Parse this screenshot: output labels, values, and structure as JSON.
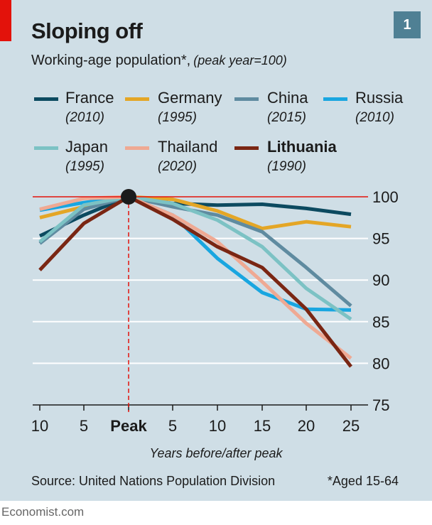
{
  "header": {
    "chart_number": "1"
  },
  "footer": {
    "source": "Source: United Nations Population Division",
    "footnote": "*Aged 15-64",
    "brand": "Economist.com"
  },
  "legend": [
    {
      "name": "France",
      "year": "(2010)",
      "color": "#0c4a60"
    },
    {
      "name": "Germany",
      "year": "(1995)",
      "color": "#e4a626"
    },
    {
      "name": "China",
      "year": "(2015)",
      "color": "#5f8ba0"
    },
    {
      "name": "Russia",
      "year": "(2010)",
      "color": "#19a6e0"
    },
    {
      "name": "Japan",
      "year": "(1995)",
      "color": "#7cc2c4"
    },
    {
      "name": "Thailand",
      "year": "(2020)",
      "color": "#efa993"
    },
    {
      "name": "Lithuania",
      "year": "(1990)",
      "color": "#7a2613"
    }
  ],
  "chart_data": {
    "type": "line",
    "title": "Sloping off",
    "subtitle": "Working-age population*,",
    "subtitle_note": "(peak year=100)",
    "xlabel": "Years before/after peak",
    "x": [
      -10,
      -5,
      0,
      5,
      10,
      15,
      20,
      25
    ],
    "x_tick_labels": [
      "10",
      "5",
      "Peak",
      "5",
      "10",
      "15",
      "20",
      "25"
    ],
    "y_ticks": [
      75,
      80,
      85,
      90,
      95,
      100
    ],
    "ylim": [
      75,
      100
    ],
    "reference_line": 100,
    "series": [
      {
        "name": "France",
        "x": [
          -10,
          -5,
          0,
          5,
          10,
          15,
          20,
          25
        ],
        "values": [
          95.3,
          97.8,
          100,
          99.2,
          99.0,
          99.1,
          98.6,
          97.9
        ]
      },
      {
        "name": "Germany",
        "x": [
          -10,
          -5,
          0,
          5,
          10,
          15,
          20,
          25
        ],
        "values": [
          97.5,
          98.8,
          100,
          99.7,
          98.3,
          96.2,
          97.0,
          96.4
        ]
      },
      {
        "name": "China",
        "x": [
          -10,
          -5,
          0,
          5,
          10,
          15,
          20,
          25
        ],
        "values": [
          94.4,
          98.5,
          100,
          98.8,
          97.8,
          95.8,
          91.5,
          86.9
        ]
      },
      {
        "name": "Russia",
        "x": [
          -10,
          -5,
          0,
          5,
          10,
          15,
          20,
          25
        ],
        "values": [
          98.4,
          99.3,
          100,
          97.8,
          92.6,
          88.5,
          86.5,
          86.4
        ]
      },
      {
        "name": "Japan",
        "x": [
          -10,
          -5,
          0,
          5,
          10,
          15,
          20,
          25
        ],
        "values": [
          94.6,
          99.0,
          100,
          99.2,
          97.2,
          94.0,
          89.0,
          85.3
        ]
      },
      {
        "name": "Thailand",
        "x": [
          -10,
          -5,
          0,
          5,
          10,
          15,
          20,
          25
        ],
        "values": [
          98.5,
          99.8,
          100,
          97.8,
          94.6,
          89.8,
          84.8,
          80.6
        ]
      },
      {
        "name": "Lithuania",
        "x": [
          -10,
          -5,
          0,
          5,
          10,
          15,
          20,
          25
        ],
        "values": [
          91.2,
          96.8,
          100,
          97.3,
          94.0,
          91.5,
          86.5,
          79.6
        ]
      }
    ]
  }
}
